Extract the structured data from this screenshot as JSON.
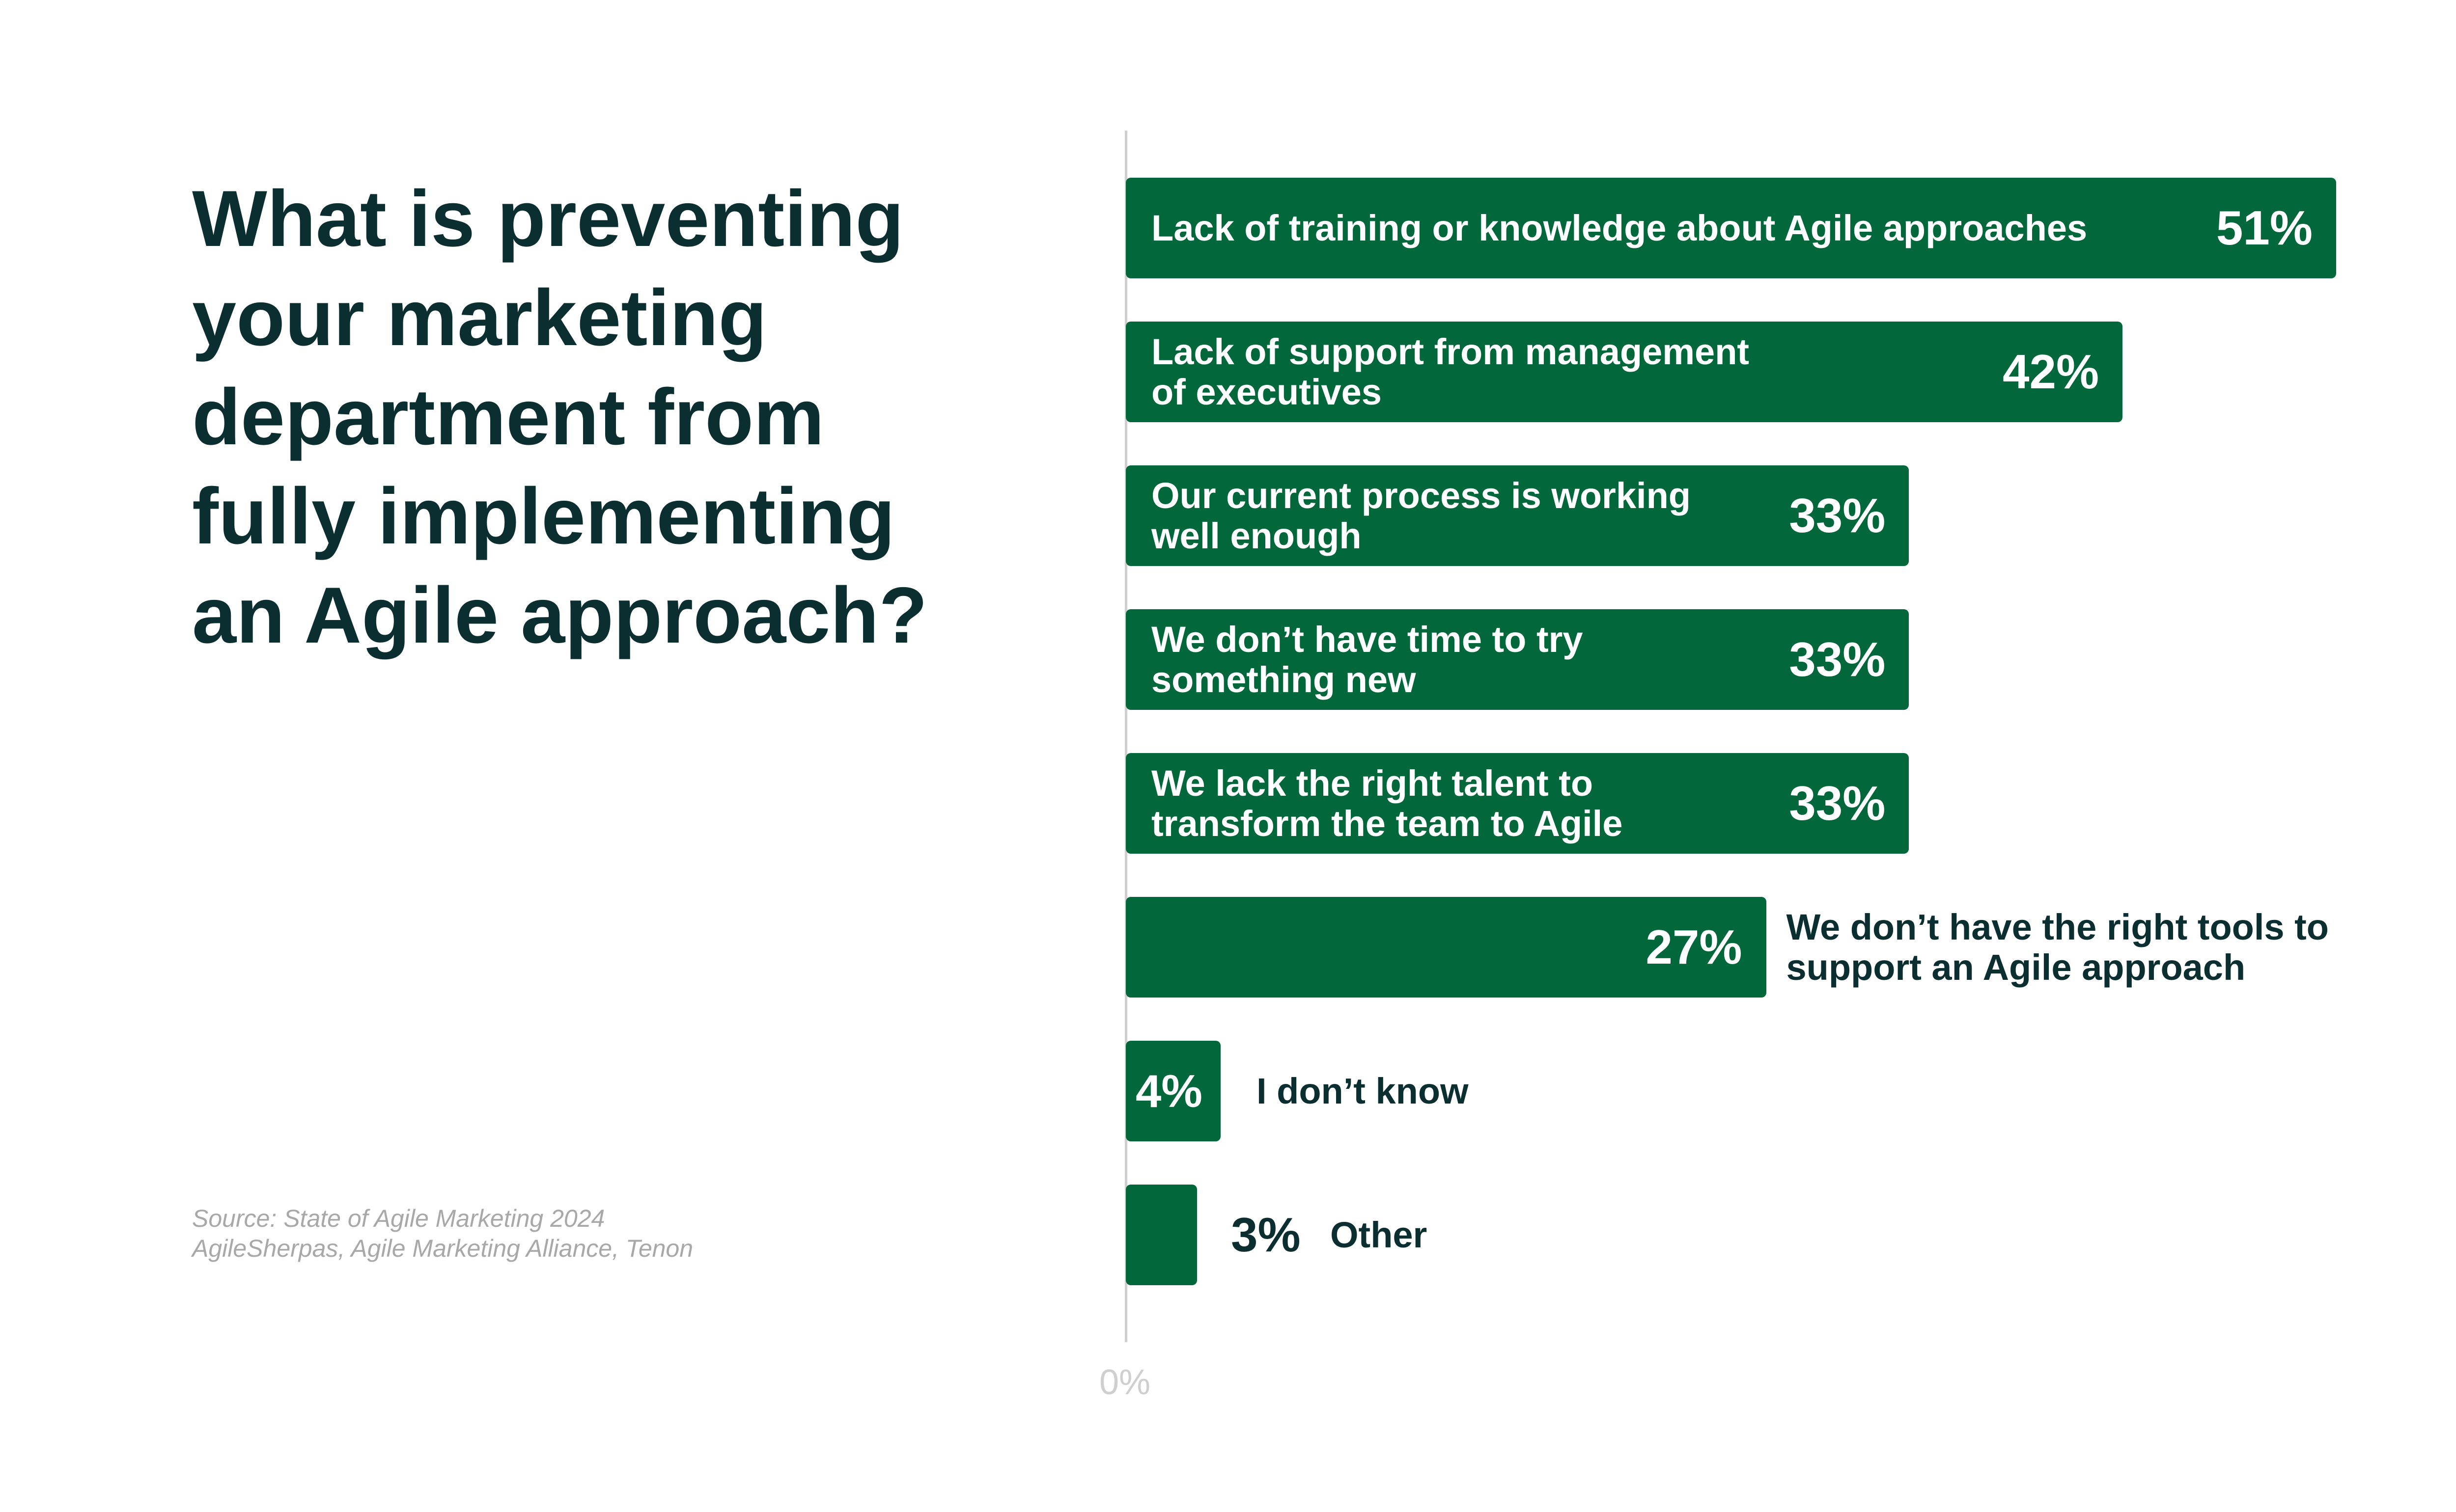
{
  "title": "What is preventing your marketing department from fully implementing an Agile approach?",
  "title_lines": [
    "What is preventing",
    "your marketing",
    "department from",
    "fully implementing",
    "an Agile approach?"
  ],
  "source_lines": [
    "Source: State of Agile Marketing 2024",
    "AgileSherpas, Agile Marketing Alliance, Tenon"
  ],
  "colors": {
    "bar": "#02683c",
    "text": "#0b2e30",
    "axis": "#cfcfcf"
  },
  "chart_data": {
    "type": "bar",
    "orientation": "horizontal",
    "title": "What is preventing your marketing department from fully implementing an Agile approach?",
    "categories": [
      [
        "Lack of training or knowledge about Agile approaches"
      ],
      [
        "Lack of support from management",
        "of executives"
      ],
      [
        "Our current process is working",
        "well enough"
      ],
      [
        "We don’t have time to try",
        "something new"
      ],
      [
        "We lack the right talent to",
        "transform the team to Agile"
      ],
      [
        "We don’t have the right tools to",
        "support an Agile approach"
      ],
      [
        "I don’t know"
      ],
      [
        "Other"
      ]
    ],
    "values": [
      51,
      42,
      33,
      33,
      33,
      27,
      4,
      3
    ],
    "value_labels": [
      "51%",
      "42%",
      "33%",
      "33%",
      "33%",
      "27%",
      "4%",
      "3%"
    ],
    "x_tick_labels": [
      "0%"
    ],
    "xlim": [
      0,
      51
    ],
    "grid": false
  }
}
